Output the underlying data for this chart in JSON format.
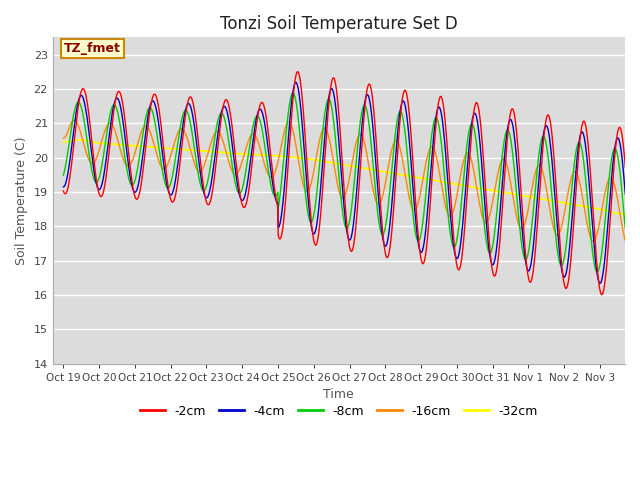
{
  "title": "Tonzi Soil Temperature Set D",
  "xlabel": "Time",
  "ylabel": "Soil Temperature (C)",
  "ylim": [
    14.0,
    23.5
  ],
  "yticks": [
    14.0,
    15.0,
    16.0,
    17.0,
    18.0,
    19.0,
    20.0,
    21.0,
    22.0,
    23.0
  ],
  "xtick_labels": [
    "Oct 19",
    "Oct 20",
    "Oct 21",
    "Oct 22",
    "Oct 23",
    "Oct 24",
    "Oct 25",
    "Oct 26",
    "Oct 27",
    "Oct 28",
    "Oct 29",
    "Oct 30",
    "Oct 31",
    "Nov 1",
    "Nov 2",
    "Nov 3"
  ],
  "series_colors": [
    "#ff0000",
    "#0000cc",
    "#00cc00",
    "#ff8800",
    "#ffff00"
  ],
  "series_labels": [
    "-2cm",
    "-4cm",
    "-8cm",
    "-16cm",
    "-32cm"
  ],
  "annotation_text": "TZ_fmet",
  "annotation_bg": "#ffffcc",
  "annotation_border": "#cc8800",
  "plot_bg": "#dcdcdc",
  "n_days": 16,
  "pts_per_day": 96
}
